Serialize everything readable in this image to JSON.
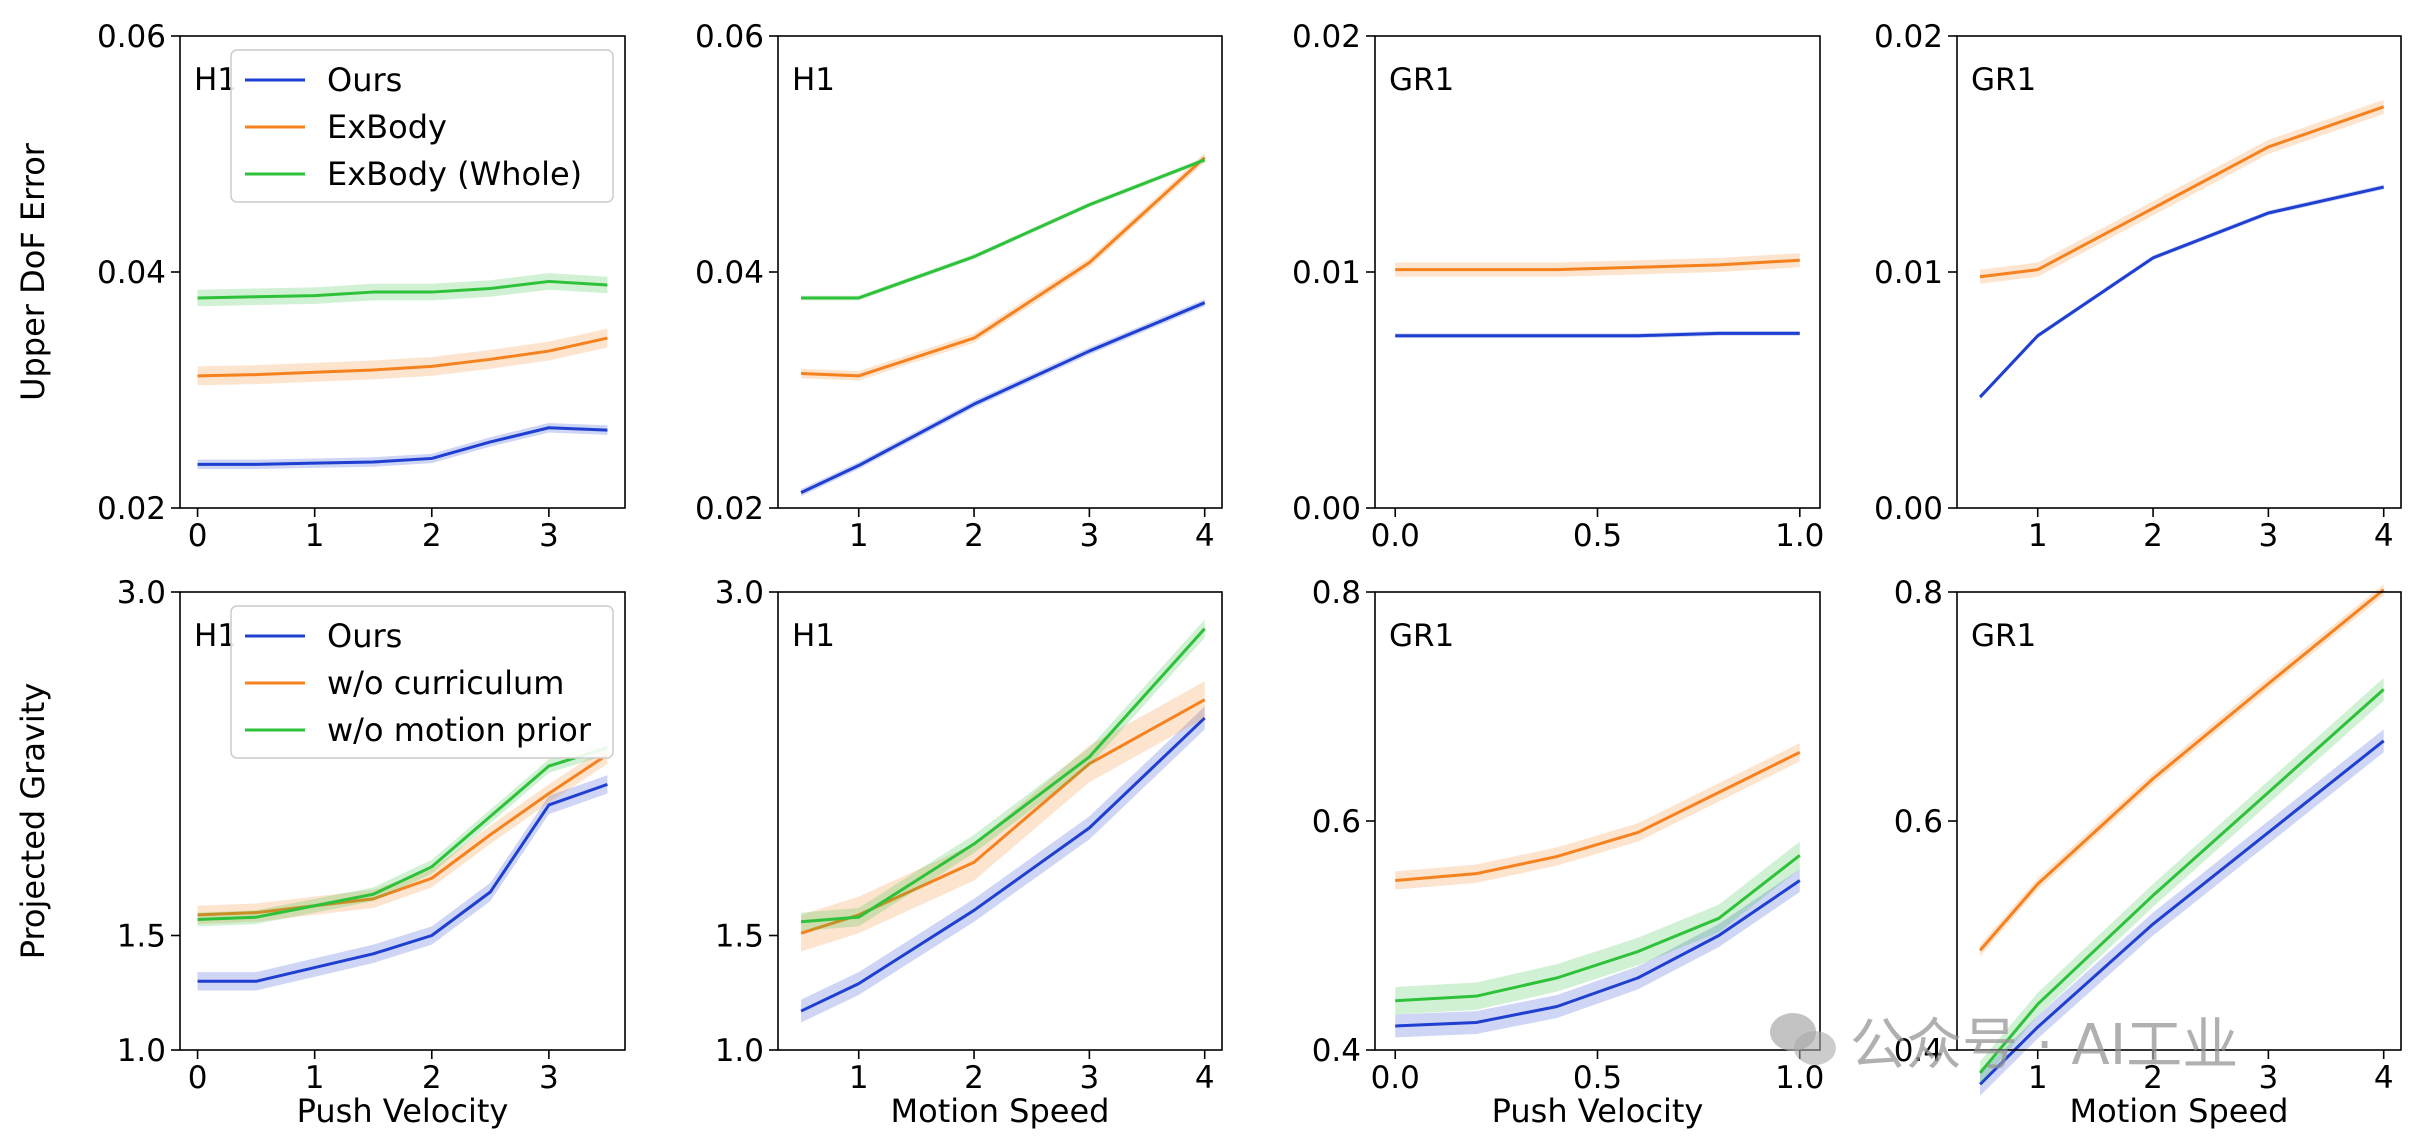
{
  "colors": {
    "ours": "#1f3fd1",
    "exbody": "#f5821f",
    "whole": "#2ec13a"
  },
  "watermark": {
    "text": "公众号 · AI工业",
    "icon": "wechat-icon"
  },
  "chart_data": [
    {
      "type": "line",
      "row": 0,
      "col": 0,
      "panel_label": "H1",
      "ylabel": "Upper DoF Error",
      "xlabel": "",
      "xlim": [
        -0.15,
        3.65
      ],
      "ylim": [
        0.02,
        0.06
      ],
      "xticks": [
        0,
        1,
        2,
        3
      ],
      "xtick_labels": [
        "0",
        "1",
        "2",
        "3"
      ],
      "yticks": [
        0.02,
        0.04,
        0.06
      ],
      "ytick_labels": [
        "0.02",
        "0.04",
        "0.06"
      ],
      "legend": {
        "position": "top-right",
        "entries": [
          "Ours",
          "ExBody",
          "ExBody (Whole)"
        ]
      },
      "series": [
        {
          "name": "Ours",
          "color_key": "ours",
          "band": 0.0004,
          "points": [
            [
              0,
              0.0237
            ],
            [
              0.5,
              0.0237
            ],
            [
              1,
              0.0238
            ],
            [
              1.5,
              0.0239
            ],
            [
              2,
              0.0242
            ],
            [
              2.5,
              0.0256
            ],
            [
              3,
              0.0268
            ],
            [
              3.5,
              0.0266
            ]
          ]
        },
        {
          "name": "ExBody",
          "color_key": "exbody",
          "band": 0.0008,
          "points": [
            [
              0,
              0.0312
            ],
            [
              0.5,
              0.0313
            ],
            [
              1,
              0.0315
            ],
            [
              1.5,
              0.0317
            ],
            [
              2,
              0.032
            ],
            [
              2.5,
              0.0326
            ],
            [
              3,
              0.0333
            ],
            [
              3.5,
              0.0344
            ]
          ]
        },
        {
          "name": "ExBody (Whole)",
          "color_key": "whole",
          "band": 0.0007,
          "points": [
            [
              0,
              0.0378
            ],
            [
              0.5,
              0.0379
            ],
            [
              1,
              0.038
            ],
            [
              1.5,
              0.0383
            ],
            [
              2,
              0.0383
            ],
            [
              2.5,
              0.0386
            ],
            [
              3,
              0.0392
            ],
            [
              3.5,
              0.0389
            ]
          ]
        }
      ]
    },
    {
      "type": "line",
      "row": 0,
      "col": 1,
      "panel_label": "H1",
      "ylabel": "",
      "xlabel": "",
      "xlim": [
        0.3,
        4.15
      ],
      "ylim": [
        0.02,
        0.06
      ],
      "xticks": [
        1,
        2,
        3,
        4
      ],
      "xtick_labels": [
        "1",
        "2",
        "3",
        "4"
      ],
      "yticks": [
        0.02,
        0.04,
        0.06
      ],
      "ytick_labels": [
        "0.02",
        "0.04",
        "0.06"
      ],
      "legend": null,
      "series": [
        {
          "name": "Ours",
          "color_key": "ours",
          "band": 0.0003,
          "points": [
            [
              0.5,
              0.0213
            ],
            [
              1,
              0.0236
            ],
            [
              2,
              0.0288
            ],
            [
              3,
              0.0333
            ],
            [
              4,
              0.0374
            ]
          ]
        },
        {
          "name": "ExBody",
          "color_key": "exbody",
          "band": 0.0004,
          "points": [
            [
              0.5,
              0.0314
            ],
            [
              1,
              0.0312
            ],
            [
              2,
              0.0344
            ],
            [
              3,
              0.0408
            ],
            [
              4,
              0.0497
            ]
          ]
        },
        {
          "name": "ExBody (Whole)",
          "color_key": "whole",
          "band": 0.0002,
          "points": [
            [
              0.5,
              0.0378
            ],
            [
              1,
              0.0378
            ],
            [
              2,
              0.0413
            ],
            [
              3,
              0.0457
            ],
            [
              4,
              0.0495
            ]
          ]
        }
      ]
    },
    {
      "type": "line",
      "row": 0,
      "col": 2,
      "panel_label": "GR1",
      "ylabel": "",
      "xlabel": "",
      "xlim": [
        -0.05,
        1.05
      ],
      "ylim": [
        0.0,
        0.02
      ],
      "xticks": [
        0.0,
        0.5,
        1.0
      ],
      "xtick_labels": [
        "0.0",
        "0.5",
        "1.0"
      ],
      "yticks": [
        0.0,
        0.01,
        0.02
      ],
      "ytick_labels": [
        "0.00",
        "0.01",
        "0.02"
      ],
      "legend": null,
      "series": [
        {
          "name": "Ours",
          "color_key": "ours",
          "band": 0.0001,
          "points": [
            [
              0,
              0.0073
            ],
            [
              0.2,
              0.0073
            ],
            [
              0.4,
              0.0073
            ],
            [
              0.6,
              0.0073
            ],
            [
              0.8,
              0.0074
            ],
            [
              1.0,
              0.0074
            ]
          ]
        },
        {
          "name": "ExBody",
          "color_key": "exbody",
          "band": 0.0003,
          "points": [
            [
              0,
              0.0101
            ],
            [
              0.2,
              0.0101
            ],
            [
              0.4,
              0.0101
            ],
            [
              0.6,
              0.0102
            ],
            [
              0.8,
              0.0103
            ],
            [
              1.0,
              0.0105
            ]
          ]
        }
      ]
    },
    {
      "type": "line",
      "row": 0,
      "col": 3,
      "panel_label": "GR1",
      "ylabel": "",
      "xlabel": "",
      "xlim": [
        0.3,
        4.15
      ],
      "ylim": [
        0.0,
        0.02
      ],
      "xticks": [
        1,
        2,
        3,
        4
      ],
      "xtick_labels": [
        "1",
        "2",
        "3",
        "4"
      ],
      "yticks": [
        0.0,
        0.01,
        0.02
      ],
      "ytick_labels": [
        "0.00",
        "0.01",
        "0.02"
      ],
      "legend": null,
      "series": [
        {
          "name": "Ours",
          "color_key": "ours",
          "band": 0.0001,
          "points": [
            [
              0.5,
              0.0047
            ],
            [
              1,
              0.0073
            ],
            [
              2,
              0.0106
            ],
            [
              3,
              0.0125
            ],
            [
              4,
              0.0136
            ]
          ]
        },
        {
          "name": "ExBody",
          "color_key": "exbody",
          "band": 0.0003,
          "points": [
            [
              0.5,
              0.0098
            ],
            [
              1,
              0.0101
            ],
            [
              2,
              0.0127
            ],
            [
              3,
              0.0153
            ],
            [
              4,
              0.017
            ]
          ]
        }
      ]
    },
    {
      "type": "line",
      "row": 1,
      "col": 0,
      "panel_label": "H1",
      "ylabel": "Projected Gravity",
      "xlabel": "Push Velocity",
      "xlim": [
        -0.15,
        3.65
      ],
      "ylim": [
        1.0,
        3.0
      ],
      "xticks": [
        0,
        1,
        2,
        3
      ],
      "xtick_labels": [
        "0",
        "1",
        "2",
        "3"
      ],
      "yticks": [
        1.0,
        1.5,
        3.0
      ],
      "ytick_labels": [
        "1.0",
        "1.5",
        "3.0"
      ],
      "legend": {
        "position": "top-right",
        "entries": [
          "Ours",
          "w/o curriculum",
          "w/o motion prior"
        ]
      },
      "series": [
        {
          "name": "Ours",
          "color_key": "ours",
          "band": 0.04,
          "points": [
            [
              0,
              1.3
            ],
            [
              0.5,
              1.3
            ],
            [
              1,
              1.36
            ],
            [
              1.5,
              1.42
            ],
            [
              2,
              1.5
            ],
            [
              2.5,
              1.69
            ],
            [
              3,
              2.07
            ],
            [
              3.5,
              2.16
            ]
          ]
        },
        {
          "name": "w/o curriculum",
          "color_key": "exbody",
          "band": 0.04,
          "points": [
            [
              0,
              1.59
            ],
            [
              0.5,
              1.6
            ],
            [
              1,
              1.63
            ],
            [
              1.5,
              1.66
            ],
            [
              2,
              1.75
            ],
            [
              2.5,
              1.94
            ],
            [
              3,
              2.12
            ],
            [
              3.5,
              2.29
            ]
          ]
        },
        {
          "name": "w/o motion prior",
          "color_key": "whole",
          "band": 0.03,
          "points": [
            [
              0,
              1.57
            ],
            [
              0.5,
              1.58
            ],
            [
              1,
              1.63
            ],
            [
              1.5,
              1.68
            ],
            [
              2,
              1.8
            ],
            [
              2.5,
              2.02
            ],
            [
              3,
              2.24
            ],
            [
              3.5,
              2.32
            ]
          ]
        }
      ]
    },
    {
      "type": "line",
      "row": 1,
      "col": 1,
      "panel_label": "H1",
      "ylabel": "",
      "xlabel": "Motion Speed",
      "xlim": [
        0.3,
        4.15
      ],
      "ylim": [
        1.0,
        3.0
      ],
      "xticks": [
        1,
        2,
        3,
        4
      ],
      "xtick_labels": [
        "1",
        "2",
        "3",
        "4"
      ],
      "yticks": [
        1.0,
        1.5,
        3.0
      ],
      "ytick_labels": [
        "1.0",
        "1.5",
        "3.0"
      ],
      "legend": null,
      "series": [
        {
          "name": "Ours",
          "color_key": "ours",
          "band": 0.05,
          "points": [
            [
              0.5,
              1.17
            ],
            [
              1,
              1.29
            ],
            [
              2,
              1.61
            ],
            [
              3,
              1.97
            ],
            [
              4,
              2.45
            ]
          ]
        },
        {
          "name": "w/o curriculum",
          "color_key": "exbody",
          "band": 0.08,
          "points": [
            [
              0.5,
              1.51
            ],
            [
              1,
              1.59
            ],
            [
              2,
              1.82
            ],
            [
              3,
              2.25
            ],
            [
              4,
              2.53
            ]
          ]
        },
        {
          "name": "w/o motion prior",
          "color_key": "whole",
          "band": 0.04,
          "points": [
            [
              0.5,
              1.56
            ],
            [
              1,
              1.58
            ],
            [
              2,
              1.9
            ],
            [
              3,
              2.28
            ],
            [
              4,
              2.84
            ]
          ]
        }
      ]
    },
    {
      "type": "line",
      "row": 1,
      "col": 2,
      "panel_label": "GR1",
      "ylabel": "",
      "xlabel": "Push Velocity",
      "xlim": [
        -0.05,
        1.05
      ],
      "ylim": [
        0.4,
        0.8
      ],
      "xticks": [
        0.0,
        0.5,
        1.0
      ],
      "xtick_labels": [
        "0.0",
        "0.5",
        "1.0"
      ],
      "yticks": [
        0.4,
        0.6,
        0.8
      ],
      "ytick_labels": [
        "0.4",
        "0.6",
        "0.8"
      ],
      "legend": null,
      "series": [
        {
          "name": "Ours",
          "color_key": "ours",
          "band": 0.01,
          "points": [
            [
              0,
              0.421
            ],
            [
              0.2,
              0.424
            ],
            [
              0.4,
              0.438
            ],
            [
              0.6,
              0.463
            ],
            [
              0.8,
              0.5
            ],
            [
              1.0,
              0.548
            ]
          ]
        },
        {
          "name": "w/o curriculum",
          "color_key": "exbody",
          "band": 0.008,
          "points": [
            [
              0,
              0.548
            ],
            [
              0.2,
              0.554
            ],
            [
              0.4,
              0.569
            ],
            [
              0.6,
              0.59
            ],
            [
              0.8,
              0.625
            ],
            [
              1.0,
              0.66
            ]
          ]
        },
        {
          "name": "w/o motion prior",
          "color_key": "whole",
          "band": 0.012,
          "points": [
            [
              0,
              0.443
            ],
            [
              0.2,
              0.447
            ],
            [
              0.4,
              0.463
            ],
            [
              0.6,
              0.486
            ],
            [
              0.8,
              0.515
            ],
            [
              1.0,
              0.57
            ]
          ]
        }
      ]
    },
    {
      "type": "line",
      "row": 1,
      "col": 3,
      "panel_label": "GR1",
      "ylabel": "",
      "xlabel": "Motion Speed",
      "xlim": [
        0.3,
        4.15
      ],
      "ylim": [
        0.4,
        0.8
      ],
      "xticks": [
        1,
        2,
        3,
        4
      ],
      "xtick_labels": [
        "1",
        "2",
        "3",
        "4"
      ],
      "yticks": [
        0.4,
        0.6,
        0.8
      ],
      "ytick_labels": [
        "0.4",
        "0.6",
        "0.8"
      ],
      "legend": null,
      "series": [
        {
          "name": "Ours",
          "color_key": "ours",
          "band": 0.01,
          "points": [
            [
              0.5,
              0.37
            ],
            [
              1,
              0.42
            ],
            [
              2,
              0.51
            ],
            [
              3,
              0.59
            ],
            [
              4,
              0.67
            ]
          ]
        },
        {
          "name": "w/o curriculum",
          "color_key": "exbody",
          "band": 0.005,
          "points": [
            [
              0.5,
              0.487
            ],
            [
              1,
              0.545
            ],
            [
              2,
              0.637
            ],
            [
              3,
              0.72
            ],
            [
              4,
              0.802
            ]
          ]
        },
        {
          "name": "w/o motion prior",
          "color_key": "whole",
          "band": 0.01,
          "points": [
            [
              0.5,
              0.38
            ],
            [
              1,
              0.44
            ],
            [
              2,
              0.535
            ],
            [
              3,
              0.625
            ],
            [
              4,
              0.715
            ]
          ]
        }
      ]
    }
  ]
}
